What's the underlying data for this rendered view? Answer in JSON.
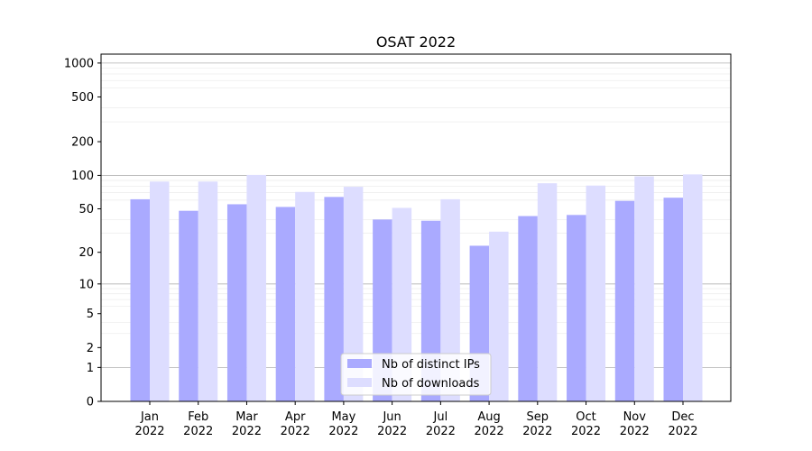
{
  "chart_data": {
    "type": "bar",
    "title": "OSAT 2022",
    "xlabel": "",
    "ylabel": "",
    "yscale": "symlog",
    "ylim": [
      0,
      1200
    ],
    "yticks": [
      0,
      1,
      2,
      5,
      10,
      20,
      50,
      100,
      200,
      500,
      1000
    ],
    "categories": [
      "Jan\n2022",
      "Feb\n2022",
      "Mar\n2022",
      "Apr\n2022",
      "May\n2022",
      "Jun\n2022",
      "Jul\n2022",
      "Aug\n2022",
      "Sep\n2022",
      "Oct\n2022",
      "Nov\n2022",
      "Dec\n2022"
    ],
    "series": [
      {
        "name": "Nb of distinct IPs",
        "color": "#aaaaff",
        "values": [
          61,
          48,
          55,
          52,
          64,
          40,
          39,
          23,
          43,
          44,
          59,
          63
        ]
      },
      {
        "name": "Nb of downloads",
        "color": "#ddddff",
        "values": [
          88,
          88,
          101,
          71,
          79,
          51,
          61,
          31,
          85,
          81,
          98,
          102
        ]
      }
    ],
    "grid": true,
    "legend": "bottom-center"
  }
}
